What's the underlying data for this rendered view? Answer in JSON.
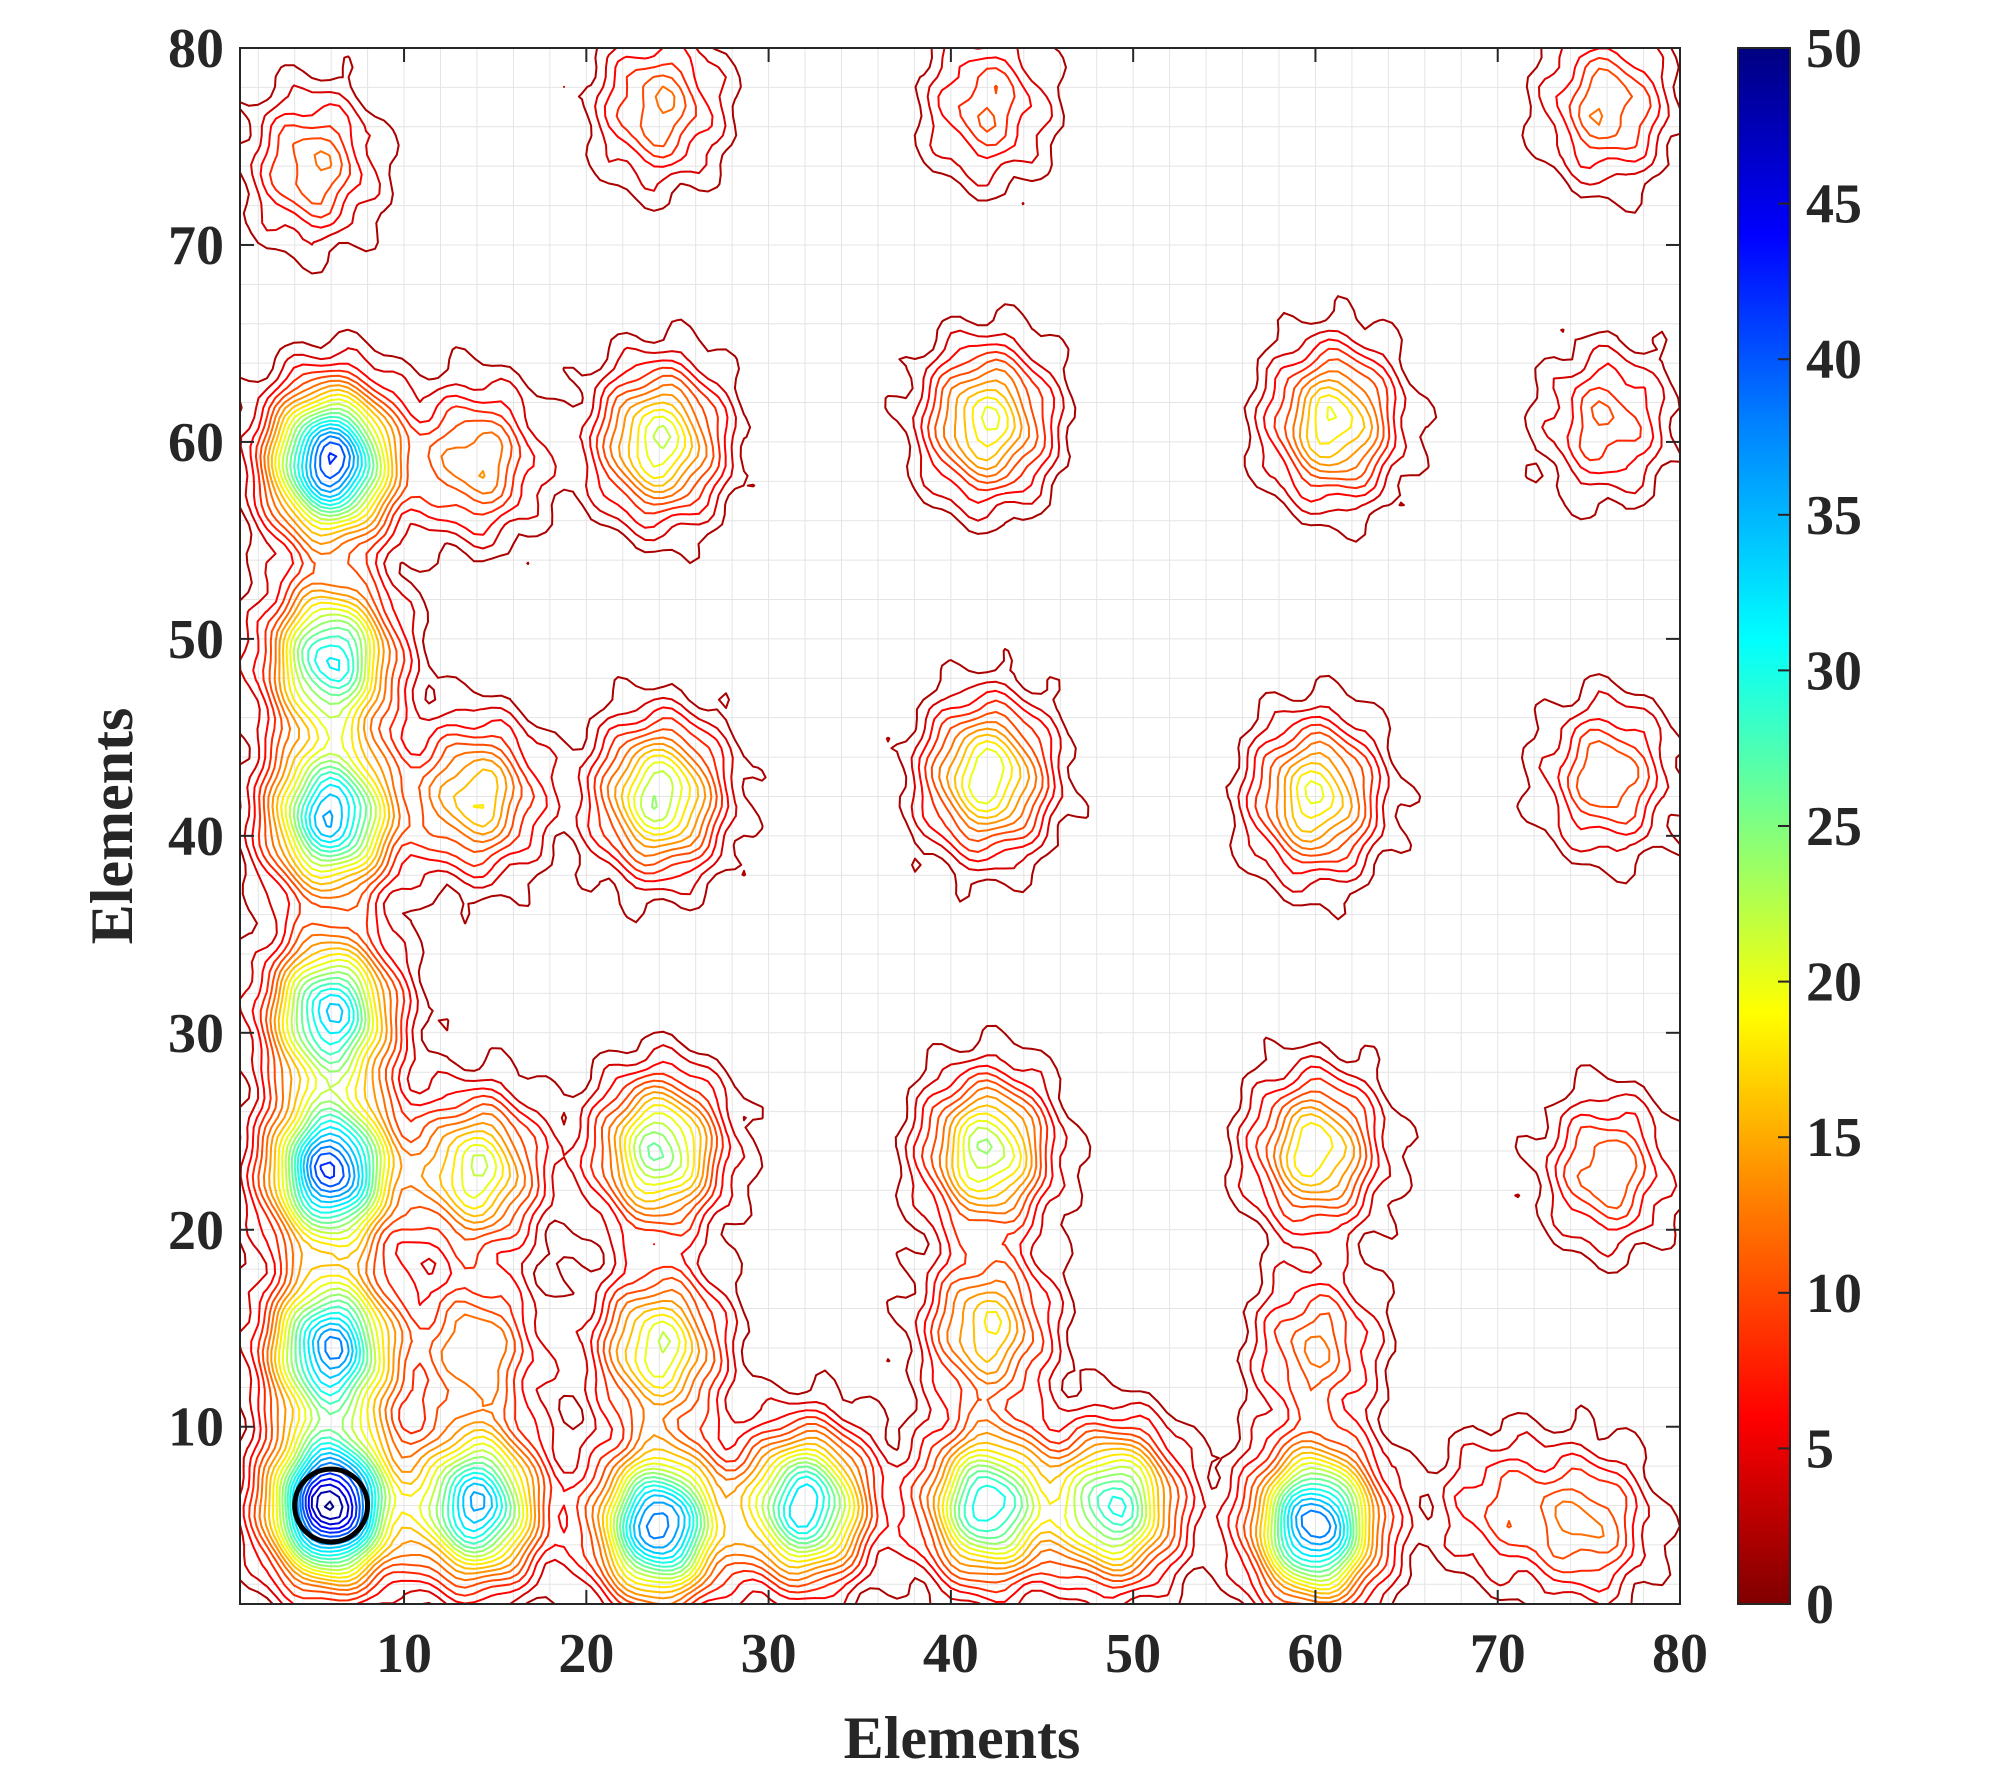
{
  "chart_data": {
    "type": "heatmap",
    "subtype": "contour",
    "title": "",
    "xlabel": "Elements",
    "ylabel": "Elements",
    "xlim": [
      1,
      80
    ],
    "ylim": [
      1,
      80
    ],
    "x_ticks": [
      10,
      20,
      30,
      40,
      50,
      60,
      70,
      80
    ],
    "y_ticks": [
      10,
      20,
      30,
      40,
      50,
      60,
      70,
      80
    ],
    "grid": true,
    "colormap": "jet-reversed (blue high, dark red low)",
    "colorbar": {
      "range": [
        0,
        50
      ],
      "ticks": [
        0,
        5,
        10,
        15,
        20,
        25,
        30,
        35,
        40,
        45,
        50
      ],
      "stops": [
        {
          "v": 0,
          "c": "#800000"
        },
        {
          "v": 6,
          "c": "#ff0000"
        },
        {
          "v": 13,
          "c": "#ff8000"
        },
        {
          "v": 19,
          "c": "#ffff00"
        },
        {
          "v": 25,
          "c": "#80ff80"
        },
        {
          "v": 31,
          "c": "#00ffff"
        },
        {
          "v": 38,
          "c": "#0080ff"
        },
        {
          "v": 44,
          "c": "#0000ff"
        },
        {
          "v": 50,
          "c": "#000080"
        }
      ]
    },
    "peaks": [
      {
        "x": 6,
        "y": 6,
        "v": 50
      },
      {
        "x": 14,
        "y": 6,
        "v": 36
      },
      {
        "x": 24,
        "y": 5,
        "v": 40
      },
      {
        "x": 32,
        "y": 6,
        "v": 34
      },
      {
        "x": 42,
        "y": 6,
        "v": 32
      },
      {
        "x": 49,
        "y": 6,
        "v": 30
      },
      {
        "x": 60,
        "y": 5,
        "v": 40
      },
      {
        "x": 70,
        "y": 6,
        "v": 8
      },
      {
        "x": 75,
        "y": 5,
        "v": 12
      },
      {
        "x": 6,
        "y": 14,
        "v": 38
      },
      {
        "x": 14,
        "y": 14,
        "v": 14
      },
      {
        "x": 24,
        "y": 14,
        "v": 22
      },
      {
        "x": 42,
        "y": 15,
        "v": 18
      },
      {
        "x": 60,
        "y": 14,
        "v": 12
      },
      {
        "x": 6,
        "y": 23,
        "v": 42
      },
      {
        "x": 6,
        "y": 31,
        "v": 34
      },
      {
        "x": 14,
        "y": 23,
        "v": 22
      },
      {
        "x": 24,
        "y": 24,
        "v": 26
      },
      {
        "x": 42,
        "y": 24,
        "v": 24
      },
      {
        "x": 60,
        "y": 24,
        "v": 20
      },
      {
        "x": 76,
        "y": 23,
        "v": 12
      },
      {
        "x": 6,
        "y": 41,
        "v": 36
      },
      {
        "x": 6,
        "y": 49,
        "v": 32
      },
      {
        "x": 14,
        "y": 42,
        "v": 18
      },
      {
        "x": 24,
        "y": 42,
        "v": 24
      },
      {
        "x": 42,
        "y": 43,
        "v": 22
      },
      {
        "x": 60,
        "y": 42,
        "v": 20
      },
      {
        "x": 76,
        "y": 43,
        "v": 12
      },
      {
        "x": 6,
        "y": 59,
        "v": 42
      },
      {
        "x": 14,
        "y": 59,
        "v": 14
      },
      {
        "x": 24,
        "y": 60,
        "v": 22
      },
      {
        "x": 42,
        "y": 61,
        "v": 20
      },
      {
        "x": 61,
        "y": 61,
        "v": 20
      },
      {
        "x": 76,
        "y": 61,
        "v": 10
      },
      {
        "x": 5,
        "y": 74,
        "v": 12
      },
      {
        "x": 24,
        "y": 77,
        "v": 12
      },
      {
        "x": 42,
        "y": 77,
        "v": 10
      },
      {
        "x": 76,
        "y": 77,
        "v": 12
      }
    ],
    "annotation": {
      "type": "circle",
      "center": [
        6,
        6
      ],
      "radius": 2
    }
  }
}
